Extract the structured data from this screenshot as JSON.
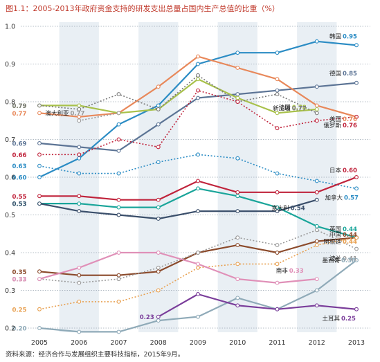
{
  "title": "图1.1：2005-2013年政府资金支持的研发支出总量占国内生产总值的比重（%）",
  "source": "资料来源：经济合作与发展组织主要科技指标，2015年9月。",
  "chart_data": {
    "type": "line",
    "x": [
      2005,
      2006,
      2007,
      2008,
      2009,
      2010,
      2011,
      2012,
      2013
    ],
    "ylim": [
      0.2,
      1.0
    ],
    "yticks": [
      "0.2",
      "0.3",
      "0.4",
      "0.5",
      "0.6",
      "0.7",
      "0.8",
      "0.9",
      "1.0"
    ],
    "grid": true,
    "series": [
      {
        "name": "韩国",
        "color": "#2b8cc4",
        "dashed": false,
        "values": [
          0.6,
          0.65,
          0.74,
          0.79,
          0.9,
          0.93,
          0.93,
          0.96,
          0.95
        ],
        "end_label": "0.95",
        "start_label": "0.60"
      },
      {
        "name": "德国",
        "color": "#5c7495",
        "dashed": false,
        "values": [
          0.69,
          0.68,
          0.67,
          0.74,
          0.81,
          0.82,
          0.83,
          0.84,
          0.85
        ],
        "end_label": "0.85",
        "start_label": "0.69"
      },
      {
        "name": "美国",
        "color": "#e8885a",
        "dashed": false,
        "values": [
          0.77,
          0.76,
          0.77,
          0.84,
          0.92,
          0.89,
          0.86,
          0.79,
          0.76
        ],
        "end_label": "0.76",
        "start_label": "0.77"
      },
      {
        "name": "法国",
        "color": "#a8c14a",
        "dashed": false,
        "values": [
          0.79,
          0.79,
          0.77,
          0.78,
          0.86,
          0.81,
          0.77,
          0.78,
          null
        ],
        "end_label": "0.78",
        "start_label": "0.79"
      },
      {
        "name": "新加坡",
        "color": "#7a7a7a",
        "dashed": true,
        "values": [
          0.79,
          0.78,
          0.82,
          0.78,
          0.87,
          0.8,
          0.82,
          0.77,
          null
        ],
        "end_label": "0.77",
        "start_label": "0.79"
      },
      {
        "name": "俄罗斯",
        "color": "#c0243c",
        "dashed": true,
        "values": [
          0.66,
          0.66,
          0.7,
          0.68,
          0.83,
          0.8,
          0.73,
          0.75,
          0.76
        ],
        "end_label": "0.76",
        "start_label": "0.66"
      },
      {
        "name": "澳大利亚",
        "color": "#9a9a9a",
        "dashed": true,
        "values": [
          null,
          0.75,
          0.77,
          null,
          null,
          null,
          null,
          null,
          null
        ],
        "end_label": "0.77",
        "start_label": ""
      },
      {
        "name": "加拿大",
        "color": "#2b8cc4",
        "dashed": true,
        "values": [
          0.63,
          0.61,
          0.61,
          0.64,
          0.66,
          0.65,
          0.61,
          0.59,
          0.57
        ],
        "end_label": "0.57",
        "start_label": "0.63"
      },
      {
        "name": "日本",
        "color": "#c0243c",
        "dashed": false,
        "values": [
          0.55,
          0.55,
          0.54,
          0.54,
          0.59,
          0.56,
          0.56,
          0.56,
          0.6
        ],
        "end_label": "0.60",
        "start_label": "0.55"
      },
      {
        "name": "英国",
        "color": "#1aa59a",
        "dashed": false,
        "values": [
          0.53,
          0.53,
          0.52,
          0.52,
          0.57,
          0.55,
          0.52,
          0.47,
          0.44
        ],
        "end_label": "0.44",
        "start_label": "0.53"
      },
      {
        "name": "意大利",
        "color": "#3b4f6b",
        "dashed": false,
        "values": [
          0.53,
          0.51,
          0.5,
          0.49,
          0.51,
          0.51,
          0.51,
          0.54,
          null
        ],
        "end_label": "0.54",
        "start_label": "0.53"
      },
      {
        "name": "中国",
        "color": "#8b4a2b",
        "dashed": false,
        "values": [
          0.35,
          0.34,
          0.34,
          0.35,
          0.4,
          0.42,
          0.4,
          0.43,
          0.44
        ],
        "end_label": "0.44",
        "start_label": "0.35"
      },
      {
        "name": "阿根廷",
        "color": "#e8a050",
        "dashed": true,
        "values": [
          0.25,
          0.27,
          0.27,
          0.3,
          0.36,
          0.37,
          0.37,
          0.42,
          0.44
        ],
        "end_label": "0.44",
        "start_label": "0.25"
      },
      {
        "name": "波兰",
        "color": "#9a9a9a",
        "dashed": true,
        "values": [
          0.33,
          0.32,
          0.33,
          0.36,
          0.4,
          0.44,
          0.42,
          0.46,
          0.41
        ],
        "end_label": "0.41",
        "start_label": "0.33"
      },
      {
        "name": "南非",
        "color": "#e090b8",
        "dashed": false,
        "values": [
          0.33,
          0.36,
          0.4,
          0.4,
          0.37,
          0.33,
          0.32,
          0.33,
          null
        ],
        "end_label": "0.33",
        "start_label": "0.33"
      },
      {
        "name": "墨西哥",
        "color": "#8faab8",
        "dashed": false,
        "values": [
          0.2,
          0.19,
          0.19,
          0.22,
          0.23,
          0.28,
          0.25,
          0.3,
          0.38
        ],
        "end_label": "0.38",
        "start_label": "0.20"
      },
      {
        "name": "土耳其",
        "color": "#7a3d9a",
        "dashed": false,
        "values": [
          null,
          null,
          null,
          0.23,
          0.29,
          0.26,
          0.25,
          0.26,
          0.25
        ],
        "end_label": "0.25",
        "start_label": "0.23"
      }
    ]
  }
}
